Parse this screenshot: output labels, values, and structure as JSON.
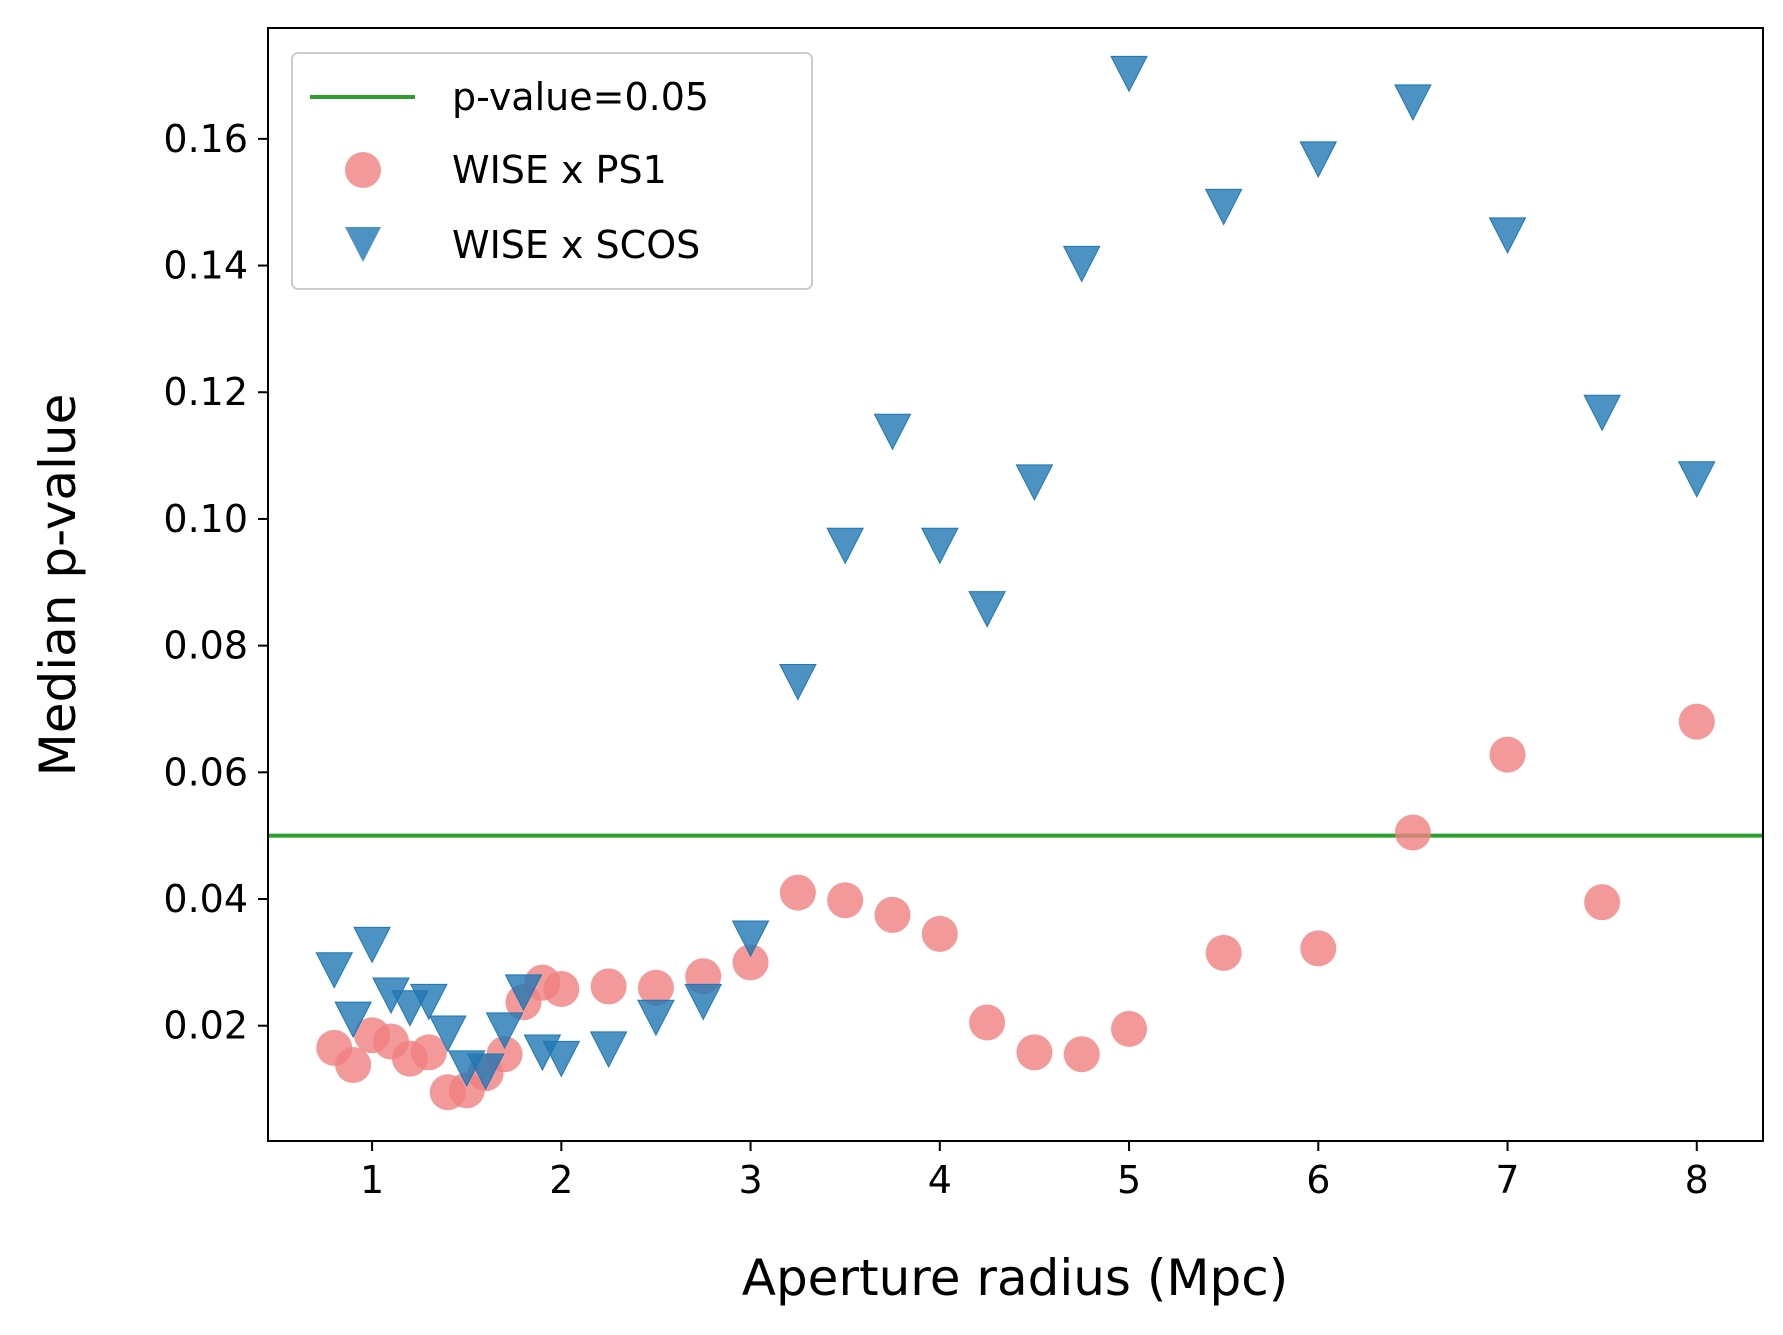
{
  "chart_data": {
    "type": "scatter",
    "title": "",
    "xlabel": "Aperture radius (Mpc)",
    "ylabel": "Median p-value",
    "xlim": [
      0.45,
      8.35
    ],
    "ylim": [
      0.0018,
      0.1775
    ],
    "xticks": [
      1,
      2,
      3,
      4,
      5,
      6,
      7,
      8
    ],
    "yticks": [
      0.02,
      0.04,
      0.06,
      0.08,
      0.1,
      0.12,
      0.14,
      0.16
    ],
    "ytick_labels": [
      "0.02",
      "0.04",
      "0.06",
      "0.08",
      "0.10",
      "0.12",
      "0.14",
      "0.16"
    ],
    "grid": false,
    "legend_position": "upper-left",
    "reference_line": {
      "name": "p-value=0.05",
      "y": 0.05,
      "color": "#2ca02c"
    },
    "series": [
      {
        "name": "WISE x PS1",
        "marker": "circle",
        "color": "#f08080",
        "x": [
          0.8,
          0.9,
          1.0,
          1.1,
          1.2,
          1.3,
          1.4,
          1.5,
          1.6,
          1.7,
          1.8,
          1.9,
          2.0,
          2.25,
          2.5,
          2.75,
          3.0,
          3.25,
          3.5,
          3.75,
          4.0,
          4.25,
          4.5,
          4.75,
          5.0,
          5.5,
          6.0,
          6.5,
          7.0,
          7.5,
          8.0
        ],
        "y": [
          0.0165,
          0.0138,
          0.0185,
          0.0175,
          0.0148,
          0.0158,
          0.0095,
          0.0098,
          0.0125,
          0.0155,
          0.0237,
          0.0268,
          0.0258,
          0.0262,
          0.026,
          0.0278,
          0.03,
          0.041,
          0.0398,
          0.0375,
          0.0345,
          0.0205,
          0.0158,
          0.0155,
          0.0195,
          0.0315,
          0.0322,
          0.0505,
          0.0628,
          0.0395,
          0.068
        ]
      },
      {
        "name": "WISE x SCOS",
        "marker": "triangle-down",
        "color": "#1f77b4",
        "x": [
          0.8,
          0.9,
          1.0,
          1.1,
          1.2,
          1.3,
          1.4,
          1.5,
          1.6,
          1.7,
          1.8,
          1.9,
          2.0,
          2.25,
          2.5,
          2.75,
          3.0,
          3.25,
          3.5,
          3.75,
          4.0,
          4.25,
          4.5,
          4.75,
          5.0,
          5.5,
          6.0,
          6.5,
          7.0,
          7.5,
          8.0
        ],
        "y": [
          0.029,
          0.0212,
          0.033,
          0.025,
          0.023,
          0.024,
          0.019,
          0.0135,
          0.013,
          0.0195,
          0.0255,
          0.016,
          0.015,
          0.0165,
          0.0215,
          0.024,
          0.034,
          0.0745,
          0.096,
          0.114,
          0.096,
          0.086,
          0.106,
          0.1405,
          0.1705,
          0.1495,
          0.157,
          0.166,
          0.145,
          0.117,
          0.1065
        ]
      }
    ]
  }
}
